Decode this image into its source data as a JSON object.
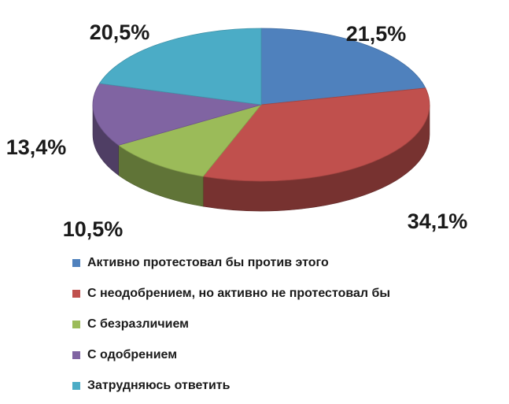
{
  "chart_data": {
    "type": "pie",
    "title": "",
    "legend_position": "bottom",
    "three_d": true,
    "slices": [
      {
        "label": "Активно протестовал бы против этого",
        "value": 21.5,
        "display": "21,5%",
        "color": "#4f81bd"
      },
      {
        "label": "С неодобрением, но активно не протестовал бы",
        "value": 34.1,
        "display": "34,1%",
        "color": "#c0504d"
      },
      {
        "label": "С безразличием",
        "value": 10.5,
        "display": "10,5%",
        "color": "#9bbb59"
      },
      {
        "label": "С одобрением",
        "value": 13.4,
        "display": "13,4%",
        "color": "#8064a2"
      },
      {
        "label": "Затрудняюсь ответить",
        "value": 20.5,
        "display": "20,5%",
        "color": "#4bacc6"
      }
    ]
  }
}
